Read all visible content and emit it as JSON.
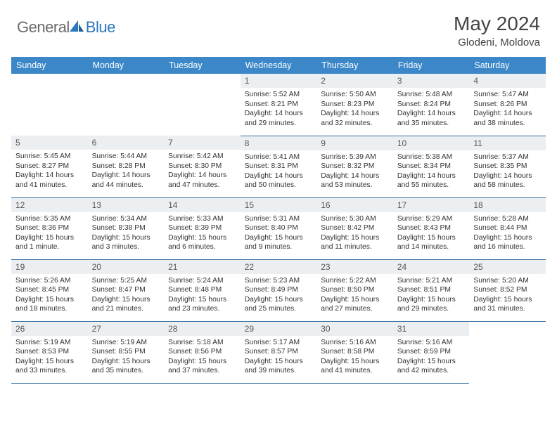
{
  "logo": {
    "part1": "General",
    "part2": "Blue"
  },
  "title": "May 2024",
  "subtitle": "Glodeni, Moldova",
  "colors": {
    "header_bg": "#3b87c8",
    "header_fg": "#ffffff",
    "daynum_bg": "#eceff1",
    "border": "#3b6fa0",
    "logo_gray": "#6a6a6a",
    "logo_blue": "#2a77bb"
  },
  "day_headers": [
    "Sunday",
    "Monday",
    "Tuesday",
    "Wednesday",
    "Thursday",
    "Friday",
    "Saturday"
  ],
  "weeks": [
    [
      {
        "n": "",
        "sr": "",
        "ss": "",
        "dl": ""
      },
      {
        "n": "",
        "sr": "",
        "ss": "",
        "dl": ""
      },
      {
        "n": "",
        "sr": "",
        "ss": "",
        "dl": ""
      },
      {
        "n": "1",
        "sr": "Sunrise: 5:52 AM",
        "ss": "Sunset: 8:21 PM",
        "dl": "Daylight: 14 hours and 29 minutes."
      },
      {
        "n": "2",
        "sr": "Sunrise: 5:50 AM",
        "ss": "Sunset: 8:23 PM",
        "dl": "Daylight: 14 hours and 32 minutes."
      },
      {
        "n": "3",
        "sr": "Sunrise: 5:48 AM",
        "ss": "Sunset: 8:24 PM",
        "dl": "Daylight: 14 hours and 35 minutes."
      },
      {
        "n": "4",
        "sr": "Sunrise: 5:47 AM",
        "ss": "Sunset: 8:26 PM",
        "dl": "Daylight: 14 hours and 38 minutes."
      }
    ],
    [
      {
        "n": "5",
        "sr": "Sunrise: 5:45 AM",
        "ss": "Sunset: 8:27 PM",
        "dl": "Daylight: 14 hours and 41 minutes."
      },
      {
        "n": "6",
        "sr": "Sunrise: 5:44 AM",
        "ss": "Sunset: 8:28 PM",
        "dl": "Daylight: 14 hours and 44 minutes."
      },
      {
        "n": "7",
        "sr": "Sunrise: 5:42 AM",
        "ss": "Sunset: 8:30 PM",
        "dl": "Daylight: 14 hours and 47 minutes."
      },
      {
        "n": "8",
        "sr": "Sunrise: 5:41 AM",
        "ss": "Sunset: 8:31 PM",
        "dl": "Daylight: 14 hours and 50 minutes."
      },
      {
        "n": "9",
        "sr": "Sunrise: 5:39 AM",
        "ss": "Sunset: 8:32 PM",
        "dl": "Daylight: 14 hours and 53 minutes."
      },
      {
        "n": "10",
        "sr": "Sunrise: 5:38 AM",
        "ss": "Sunset: 8:34 PM",
        "dl": "Daylight: 14 hours and 55 minutes."
      },
      {
        "n": "11",
        "sr": "Sunrise: 5:37 AM",
        "ss": "Sunset: 8:35 PM",
        "dl": "Daylight: 14 hours and 58 minutes."
      }
    ],
    [
      {
        "n": "12",
        "sr": "Sunrise: 5:35 AM",
        "ss": "Sunset: 8:36 PM",
        "dl": "Daylight: 15 hours and 1 minute."
      },
      {
        "n": "13",
        "sr": "Sunrise: 5:34 AM",
        "ss": "Sunset: 8:38 PM",
        "dl": "Daylight: 15 hours and 3 minutes."
      },
      {
        "n": "14",
        "sr": "Sunrise: 5:33 AM",
        "ss": "Sunset: 8:39 PM",
        "dl": "Daylight: 15 hours and 6 minutes."
      },
      {
        "n": "15",
        "sr": "Sunrise: 5:31 AM",
        "ss": "Sunset: 8:40 PM",
        "dl": "Daylight: 15 hours and 9 minutes."
      },
      {
        "n": "16",
        "sr": "Sunrise: 5:30 AM",
        "ss": "Sunset: 8:42 PM",
        "dl": "Daylight: 15 hours and 11 minutes."
      },
      {
        "n": "17",
        "sr": "Sunrise: 5:29 AM",
        "ss": "Sunset: 8:43 PM",
        "dl": "Daylight: 15 hours and 14 minutes."
      },
      {
        "n": "18",
        "sr": "Sunrise: 5:28 AM",
        "ss": "Sunset: 8:44 PM",
        "dl": "Daylight: 15 hours and 16 minutes."
      }
    ],
    [
      {
        "n": "19",
        "sr": "Sunrise: 5:26 AM",
        "ss": "Sunset: 8:45 PM",
        "dl": "Daylight: 15 hours and 18 minutes."
      },
      {
        "n": "20",
        "sr": "Sunrise: 5:25 AM",
        "ss": "Sunset: 8:47 PM",
        "dl": "Daylight: 15 hours and 21 minutes."
      },
      {
        "n": "21",
        "sr": "Sunrise: 5:24 AM",
        "ss": "Sunset: 8:48 PM",
        "dl": "Daylight: 15 hours and 23 minutes."
      },
      {
        "n": "22",
        "sr": "Sunrise: 5:23 AM",
        "ss": "Sunset: 8:49 PM",
        "dl": "Daylight: 15 hours and 25 minutes."
      },
      {
        "n": "23",
        "sr": "Sunrise: 5:22 AM",
        "ss": "Sunset: 8:50 PM",
        "dl": "Daylight: 15 hours and 27 minutes."
      },
      {
        "n": "24",
        "sr": "Sunrise: 5:21 AM",
        "ss": "Sunset: 8:51 PM",
        "dl": "Daylight: 15 hours and 29 minutes."
      },
      {
        "n": "25",
        "sr": "Sunrise: 5:20 AM",
        "ss": "Sunset: 8:52 PM",
        "dl": "Daylight: 15 hours and 31 minutes."
      }
    ],
    [
      {
        "n": "26",
        "sr": "Sunrise: 5:19 AM",
        "ss": "Sunset: 8:53 PM",
        "dl": "Daylight: 15 hours and 33 minutes."
      },
      {
        "n": "27",
        "sr": "Sunrise: 5:19 AM",
        "ss": "Sunset: 8:55 PM",
        "dl": "Daylight: 15 hours and 35 minutes."
      },
      {
        "n": "28",
        "sr": "Sunrise: 5:18 AM",
        "ss": "Sunset: 8:56 PM",
        "dl": "Daylight: 15 hours and 37 minutes."
      },
      {
        "n": "29",
        "sr": "Sunrise: 5:17 AM",
        "ss": "Sunset: 8:57 PM",
        "dl": "Daylight: 15 hours and 39 minutes."
      },
      {
        "n": "30",
        "sr": "Sunrise: 5:16 AM",
        "ss": "Sunset: 8:58 PM",
        "dl": "Daylight: 15 hours and 41 minutes."
      },
      {
        "n": "31",
        "sr": "Sunrise: 5:16 AM",
        "ss": "Sunset: 8:59 PM",
        "dl": "Daylight: 15 hours and 42 minutes."
      },
      {
        "n": "",
        "sr": "",
        "ss": "",
        "dl": ""
      }
    ]
  ]
}
